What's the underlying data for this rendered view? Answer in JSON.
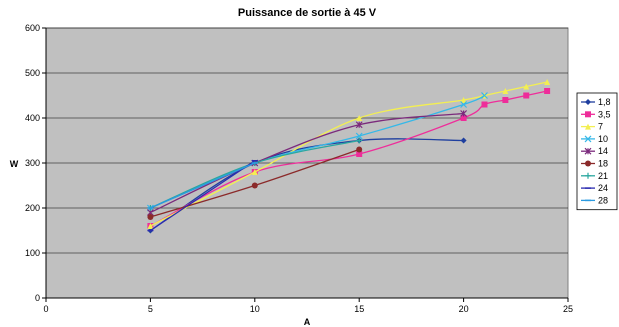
{
  "chart_data": {
    "type": "line",
    "title": "Puissance de sortie à 45 V",
    "xlabel": "A",
    "ylabel": "W",
    "xlim": [
      0,
      25
    ],
    "ylim": [
      0,
      600
    ],
    "xticks": [
      0,
      5,
      10,
      15,
      20,
      25
    ],
    "yticks": [
      0,
      100,
      200,
      300,
      400,
      500,
      600
    ],
    "grid": true,
    "legend_position": "right",
    "plot_background": "#c0c0c0",
    "series": [
      {
        "name": "1,8",
        "color": "#1f3f9f",
        "marker": "diamond",
        "points": [
          [
            5,
            150
          ],
          [
            10,
            300
          ],
          [
            15,
            350
          ],
          [
            20,
            350
          ]
        ]
      },
      {
        "name": "3,5",
        "color": "#ee2d9a",
        "marker": "square",
        "points": [
          [
            5,
            160
          ],
          [
            10,
            280
          ],
          [
            15,
            320
          ],
          [
            20,
            400
          ],
          [
            21,
            430
          ],
          [
            22,
            440
          ],
          [
            23,
            450
          ],
          [
            24,
            460
          ]
        ]
      },
      {
        "name": "7",
        "color": "#f3ef52",
        "marker": "triangle",
        "points": [
          [
            5,
            160
          ],
          [
            10,
            280
          ],
          [
            15,
            400
          ],
          [
            20,
            440
          ],
          [
            21,
            450
          ],
          [
            22,
            460
          ],
          [
            23,
            470
          ],
          [
            24,
            480
          ]
        ]
      },
      {
        "name": "10",
        "color": "#35b8e8",
        "marker": "x",
        "points": [
          [
            5,
            200
          ],
          [
            10,
            300
          ],
          [
            15,
            360
          ],
          [
            20,
            430
          ],
          [
            21,
            450
          ]
        ]
      },
      {
        "name": "14",
        "color": "#7b2a7c",
        "marker": "asterisk",
        "points": [
          [
            5,
            190
          ],
          [
            10,
            300
          ],
          [
            15,
            385
          ],
          [
            20,
            410
          ]
        ]
      },
      {
        "name": "18",
        "color": "#8b2a2a",
        "marker": "circle",
        "points": [
          [
            5,
            180
          ],
          [
            10,
            250
          ],
          [
            15,
            330
          ]
        ]
      },
      {
        "name": "21",
        "color": "#2aa7a0",
        "marker": "plus",
        "points": [
          [
            5,
            200
          ],
          [
            10,
            300
          ],
          [
            15,
            350
          ]
        ]
      },
      {
        "name": "24",
        "color": "#2a2ab0",
        "marker": "dash",
        "points": [
          [
            5,
            150
          ],
          [
            10,
            305
          ]
        ]
      },
      {
        "name": "28",
        "color": "#2a9ae0",
        "marker": "dash",
        "points": [
          [
            5,
            200
          ],
          [
            10,
            300
          ]
        ]
      }
    ]
  }
}
